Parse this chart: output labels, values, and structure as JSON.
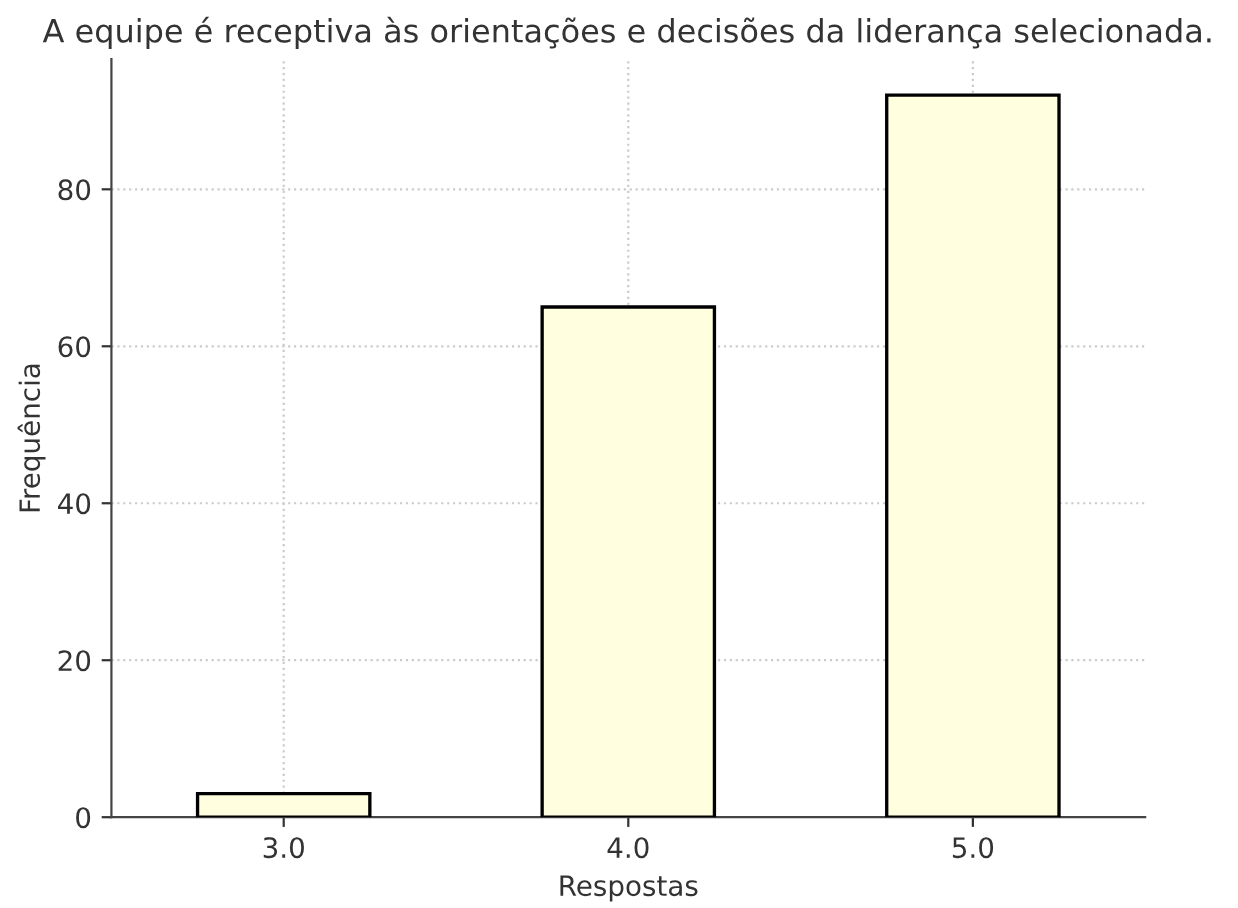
{
  "chart_data": {
    "type": "bar",
    "title": "A equipe é receptiva às orientações e decisões da liderança selecionada.",
    "xlabel": "Respostas",
    "ylabel": "Frequência",
    "categories": [
      "3.0",
      "4.0",
      "5.0"
    ],
    "values": [
      3,
      65,
      92
    ],
    "color": "#ffffe0",
    "ylim": [
      0,
      96.6
    ],
    "yticks": [
      0,
      20,
      40,
      60,
      80
    ],
    "grid": true
  }
}
